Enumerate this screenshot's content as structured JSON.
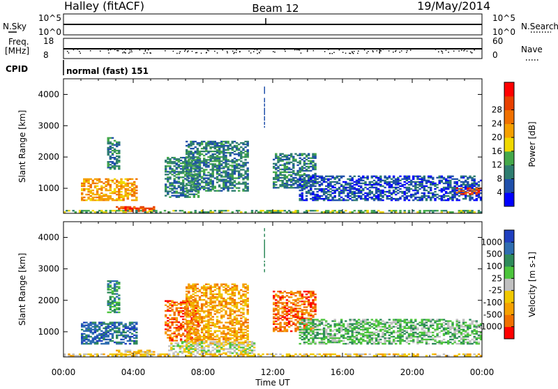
{
  "header": {
    "station": "Halley (fitACF)",
    "beam": "Beam 12",
    "date": "19/May/2014"
  },
  "aux_panels": {
    "nsky_label": "N.Sky",
    "nsky_ticks": [
      "10^5",
      "10^0"
    ],
    "nsearch_label": "N.Search",
    "nsearch_ticks": [
      "10^5",
      "10^0"
    ],
    "freq_label": "Freq.",
    "freq_unit": "[MHz]",
    "freq_ticks": [
      "18",
      "8"
    ],
    "nave_label": "Nave",
    "nave_ticks": [
      "60",
      "0"
    ],
    "cpid_label": "CPID",
    "cpid_value": "normal (fast) 151"
  },
  "chart_data": [
    {
      "type": "heatmap",
      "name": "power",
      "ylabel": "Slant Range [km]",
      "ylim": [
        200,
        4500
      ],
      "yticks": [
        1000,
        2000,
        3000,
        4000
      ],
      "xlim": [
        0,
        24
      ],
      "colorbar": {
        "label": "Power [dB]",
        "ticks": [
          4,
          8,
          12,
          16,
          20,
          24,
          28
        ],
        "colors": [
          "#0000ff",
          "#1f4faa",
          "#2e7d70",
          "#44a84a",
          "#f0d800",
          "#f5a000",
          "#f07000",
          "#e84000",
          "#ff0000"
        ]
      },
      "echo_regions": [
        {
          "t0": 1.0,
          "t1": 4.2,
          "r0": 600,
          "r1": 1300,
          "level": 5
        },
        {
          "t0": 2.5,
          "t1": 3.2,
          "r0": 1600,
          "r1": 2600,
          "level": 2
        },
        {
          "t0": 3.0,
          "t1": 5.2,
          "r0": 250,
          "r1": 420,
          "level": 7
        },
        {
          "t0": 5.8,
          "t1": 7.8,
          "r0": 700,
          "r1": 2000,
          "level": 2
        },
        {
          "t0": 7.0,
          "t1": 10.6,
          "r0": 900,
          "r1": 2500,
          "level": 2
        },
        {
          "t0": 12.0,
          "t1": 14.5,
          "r0": 1000,
          "r1": 2100,
          "level": 2
        },
        {
          "t0": 13.5,
          "t1": 24.0,
          "r0": 600,
          "r1": 1400,
          "level": 1
        },
        {
          "t0": 22.5,
          "t1": 24.0,
          "r0": 800,
          "r1": 1000,
          "level": 7
        },
        {
          "t0": 0.0,
          "t1": 24.0,
          "r0": 220,
          "r1": 300,
          "level": 3
        }
      ]
    },
    {
      "type": "heatmap",
      "name": "velocity",
      "xlabel": "Time UT",
      "ylabel": "Slant Range [km]",
      "ylim": [
        200,
        4500
      ],
      "yticks": [
        1000,
        2000,
        3000,
        4000
      ],
      "xlim": [
        0,
        24
      ],
      "xticks": [
        "00:00",
        "04:00",
        "08:00",
        "12:00",
        "16:00",
        "20:00",
        "00:00"
      ],
      "colorbar": {
        "label": "Velocity [m s-1]",
        "ticks": [
          1000,
          500,
          100,
          25,
          -25,
          -100,
          -500,
          -1000
        ],
        "colors": [
          "#1f3fbf",
          "#2e6db0",
          "#2e8a5a",
          "#4cc43c",
          "#c0c0c0",
          "#f0c800",
          "#f5a000",
          "#f07000",
          "#ff0000"
        ]
      },
      "echo_regions": [
        {
          "t0": 1.0,
          "t1": 4.2,
          "r0": 600,
          "r1": 1300,
          "level": 1
        },
        {
          "t0": 2.5,
          "t1": 3.2,
          "r0": 1600,
          "r1": 2600,
          "level": 2
        },
        {
          "t0": 3.0,
          "t1": 5.2,
          "r0": 250,
          "r1": 420,
          "level": 5
        },
        {
          "t0": 5.8,
          "t1": 7.8,
          "r0": 700,
          "r1": 2000,
          "level": 7
        },
        {
          "t0": 7.0,
          "t1": 10.6,
          "r0": 600,
          "r1": 2500,
          "level": 6
        },
        {
          "t0": 12.0,
          "t1": 14.5,
          "r0": 1000,
          "r1": 2300,
          "level": 7
        },
        {
          "t0": 13.5,
          "t1": 24.0,
          "r0": 600,
          "r1": 1400,
          "level": 3
        },
        {
          "t0": 6.0,
          "t1": 11.0,
          "r0": 300,
          "r1": 700,
          "level": 4
        },
        {
          "t0": 0.0,
          "t1": 24.0,
          "r0": 220,
          "r1": 300,
          "level": 5
        }
      ]
    }
  ]
}
